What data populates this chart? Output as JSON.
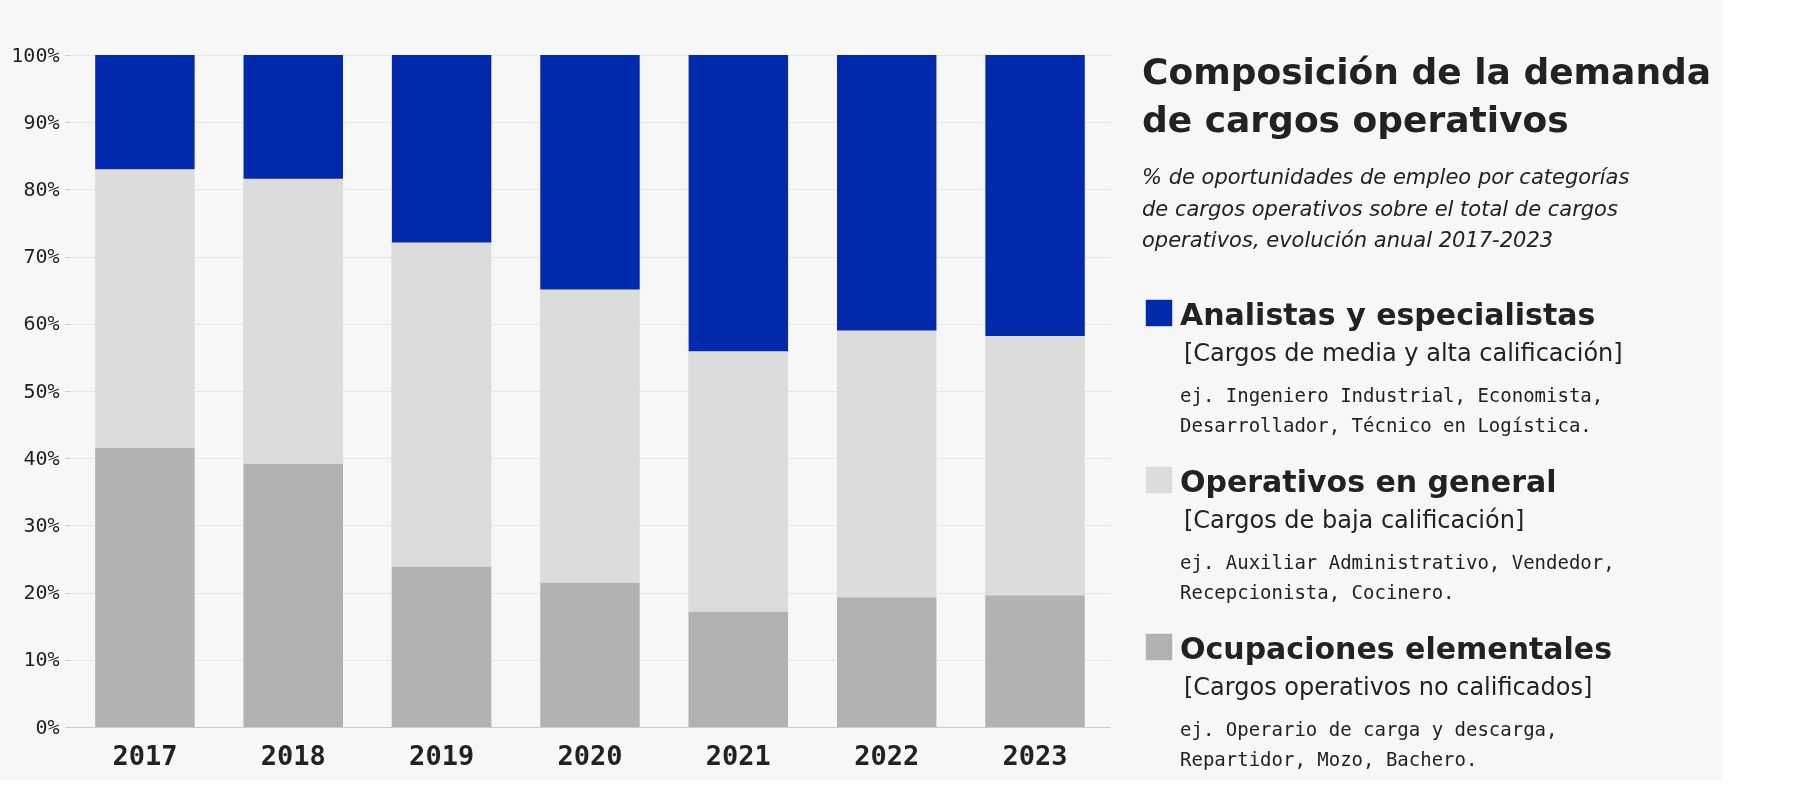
{
  "chart_data": {
    "type": "bar",
    "stacked": true,
    "title": "Composición de la demanda de cargos operativos",
    "subtitle": "% de oportunidades de empleo por categorías de cargos operativos sobre el total de cargos operativos, evolución anual 2017-2023",
    "categories": [
      "2017",
      "2018",
      "2019",
      "2020",
      "2021",
      "2022",
      "2023"
    ],
    "series": [
      {
        "name": "Ocupaciones elementales",
        "color": "#b2b2b2",
        "values": [
          41.5,
          39.2,
          23.9,
          21.5,
          17.2,
          19.3,
          19.6
        ]
      },
      {
        "name": "Operativos en general",
        "color": "#dcdcdc",
        "values": [
          41.5,
          42.4,
          48.2,
          43.6,
          38.7,
          39.7,
          38.6
        ]
      },
      {
        "name": "Analistas y especialistas",
        "color": "#0029ac",
        "values": [
          17.0,
          18.4,
          27.9,
          34.9,
          44.1,
          41.0,
          41.8
        ]
      }
    ],
    "annotations": [
      "[Cargos de media y alta calificación]",
      "ej. Ingeniero Industrial, Economista, Desarrollador, Técnico en Logística.",
      "[Cargos de baja calificación]",
      "ej. Auxiliar Administrativo, Vendedor, Recepcionista, Cocinero.",
      "[Cargos operativos no calificados]",
      "ej. Operario de carga y descarga, Repartidor, Mozo, Bachero."
    ],
    "ylim": [
      0,
      100
    ],
    "yticks": [
      {
        "value": 0,
        "label": "0%"
      },
      {
        "value": 10,
        "label": "10%"
      },
      {
        "value": 20,
        "label": "20%"
      },
      {
        "value": 30,
        "label": "30%"
      },
      {
        "value": 40,
        "label": "40%"
      },
      {
        "value": 50,
        "label": "50%"
      },
      {
        "value": 60,
        "label": "60%"
      },
      {
        "value": 70,
        "label": "70%"
      },
      {
        "value": 80,
        "label": "80%"
      },
      {
        "value": 90,
        "label": "90%"
      },
      {
        "value": 100,
        "label": "100%"
      }
    ],
    "grid": true,
    "legend": "right"
  }
}
